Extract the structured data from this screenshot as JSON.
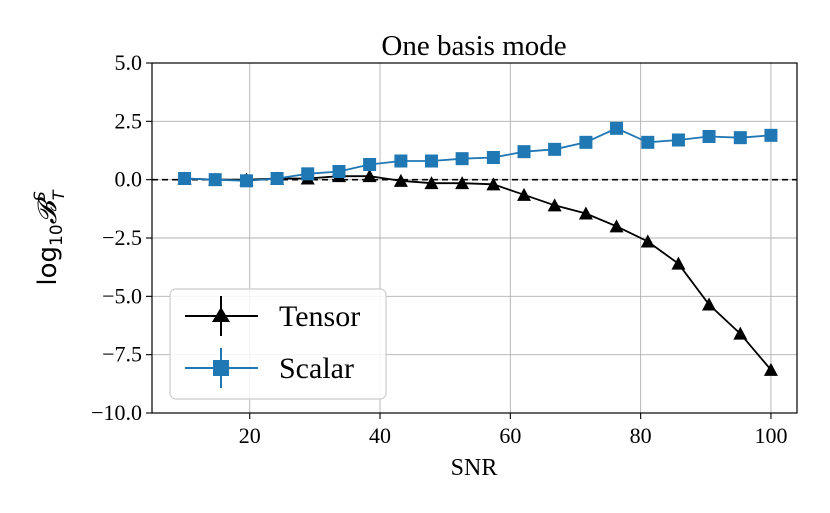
{
  "chart_data": {
    "type": "line",
    "title": "One basis mode",
    "xlabel": "SNR",
    "ylabel": {
      "base": "log",
      "sub": "10",
      "sym": "𝓑",
      "sup": "S",
      "lowsub": "T"
    },
    "xlim": [
      5,
      104
    ],
    "ylim": [
      -10,
      5
    ],
    "xticks": [
      20,
      40,
      60,
      80,
      100
    ],
    "yticks": [
      5.0,
      2.5,
      0.0,
      -2.5,
      -5.0,
      -7.5,
      -10.0
    ],
    "xtick_labels": [
      "20",
      "40",
      "60",
      "80",
      "100"
    ],
    "ytick_labels": [
      "5.0",
      "2.5",
      "0.0",
      "−2.5",
      "−5.0",
      "−7.5",
      "−10.0"
    ],
    "grid": true,
    "legend_position": "lower-left",
    "reference_line": {
      "y": 0,
      "style": "dashed",
      "color": "#000000"
    },
    "x": [
      10,
      14.7,
      19.5,
      24.2,
      28.9,
      33.7,
      38.4,
      43.2,
      47.9,
      52.6,
      57.4,
      62.1,
      66.8,
      71.6,
      76.3,
      81.1,
      85.8,
      90.5,
      95.3,
      100
    ],
    "series": [
      {
        "name": "Tensor",
        "color": "#000000",
        "marker": "triangle",
        "values": [
          0.05,
          0.0,
          0.0,
          0.05,
          0.05,
          0.15,
          0.15,
          -0.05,
          -0.15,
          -0.15,
          -0.2,
          -0.65,
          -1.1,
          -1.45,
          -2.0,
          -2.65,
          -3.6,
          -5.35,
          -6.6,
          -8.15
        ]
      },
      {
        "name": "Scalar",
        "color": "#1f77b4",
        "marker": "square",
        "values": [
          0.05,
          0.0,
          -0.05,
          0.05,
          0.25,
          0.35,
          0.65,
          0.8,
          0.8,
          0.9,
          0.95,
          1.2,
          1.3,
          1.6,
          2.2,
          1.6,
          1.7,
          1.85,
          1.8,
          1.9
        ]
      }
    ]
  }
}
